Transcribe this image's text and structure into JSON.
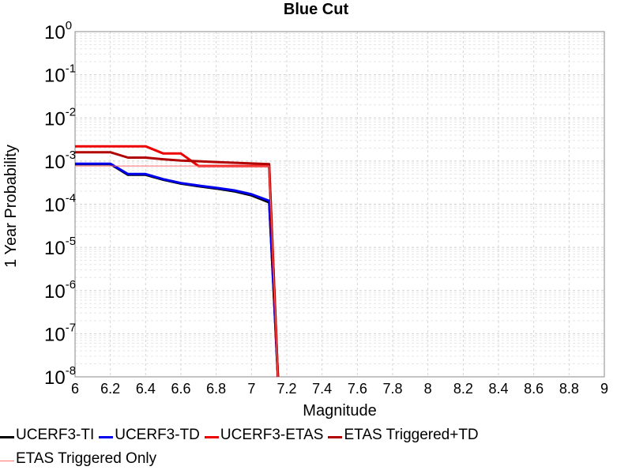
{
  "chart_data": {
    "type": "line",
    "title": "Blue Cut",
    "xlabel": "Magnitude",
    "ylabel": "1 Year Probability",
    "xlim": [
      6,
      9
    ],
    "ylim": [
      1e-08,
      1
    ],
    "yscale": "log",
    "grid": true,
    "legend_position": "bottom",
    "xticks": [
      "6",
      "6.2",
      "6.4",
      "6.6",
      "6.8",
      "7",
      "7.2",
      "7.4",
      "7.6",
      "7.8",
      "8",
      "8.2",
      "8.4",
      "8.6",
      "8.8",
      "9"
    ],
    "yticks": [
      {
        "base": "10",
        "exp": "0"
      },
      {
        "base": "10",
        "exp": "-1"
      },
      {
        "base": "10",
        "exp": "-2"
      },
      {
        "base": "10",
        "exp": "-3"
      },
      {
        "base": "10",
        "exp": "-4"
      },
      {
        "base": "10",
        "exp": "-5"
      },
      {
        "base": "10",
        "exp": "-6"
      },
      {
        "base": "10",
        "exp": "-7"
      },
      {
        "base": "10",
        "exp": "-8"
      }
    ],
    "series": [
      {
        "name": "UCERF3-TI",
        "color": "#000000",
        "width": 3,
        "x": [
          6.0,
          6.2,
          6.3,
          6.4,
          6.5,
          6.6,
          6.7,
          6.8,
          6.9,
          7.0,
          7.1,
          7.15
        ],
        "y": [
          0.00085,
          0.00085,
          0.00048,
          0.00048,
          0.00037,
          0.0003,
          0.00026,
          0.00023,
          0.0002,
          0.00016,
          0.00011,
          1e-08
        ]
      },
      {
        "name": "UCERF3-TD",
        "color": "#0000ee",
        "width": 3,
        "x": [
          6.0,
          6.2,
          6.3,
          6.4,
          6.5,
          6.6,
          6.7,
          6.8,
          6.9,
          7.0,
          7.1,
          7.15
        ],
        "y": [
          0.00087,
          0.00087,
          0.0005,
          0.0005,
          0.00038,
          0.00031,
          0.00027,
          0.00024,
          0.00021,
          0.00017,
          0.00012,
          1e-08
        ]
      },
      {
        "name": "UCERF3-ETAS",
        "color": "#ee0000",
        "width": 3,
        "x": [
          6.0,
          6.4,
          6.5,
          6.6,
          6.7,
          7.1,
          7.15
        ],
        "y": [
          0.0022,
          0.0022,
          0.0015,
          0.0015,
          0.00077,
          0.00077,
          1e-08
        ]
      },
      {
        "name": "ETAS Triggered+TD",
        "color": "#b00000",
        "width": 3,
        "x": [
          6.0,
          6.2,
          6.3,
          6.4,
          6.5,
          6.6,
          6.8,
          7.0,
          7.1,
          7.15
        ],
        "y": [
          0.0016,
          0.0016,
          0.0012,
          0.0012,
          0.0011,
          0.00103,
          0.00095,
          0.00088,
          0.00085,
          1e-08
        ]
      },
      {
        "name": "ETAS Triggered Only",
        "color": "#ff6f6f",
        "width": 1,
        "x": [
          6.0,
          7.1,
          7.15
        ],
        "y": [
          0.00077,
          0.00077,
          1e-08
        ]
      }
    ]
  }
}
